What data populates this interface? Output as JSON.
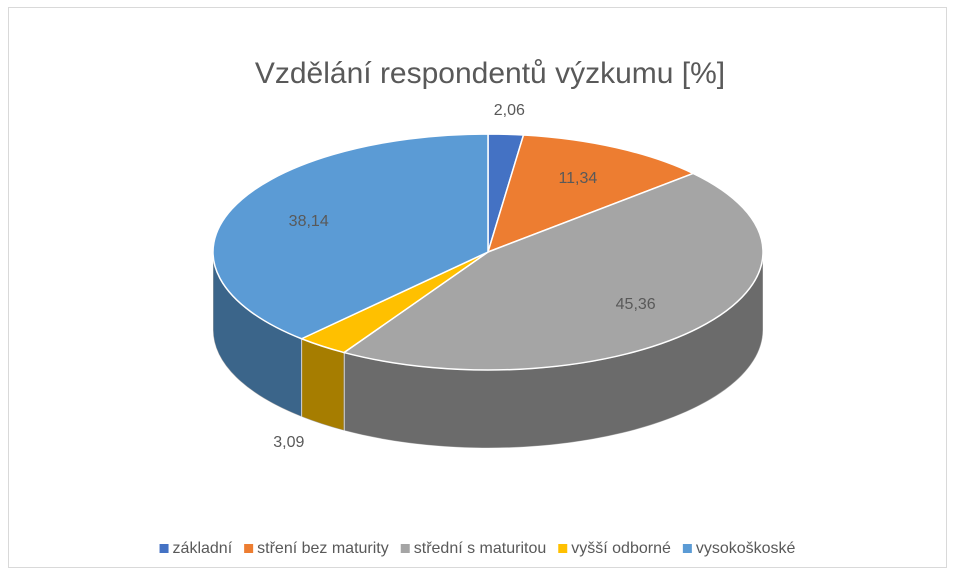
{
  "chart_data": {
    "type": "pie3d",
    "title": "Vzdělání respondentů výzkumu [%]",
    "categories": [
      "základní",
      "stření bez maturity",
      "střední s maturitou",
      "vyšší odborné",
      "vysokoškoské"
    ],
    "values": [
      2.06,
      11.34,
      45.36,
      3.09,
      38.14
    ],
    "value_labels": [
      "2,06",
      "11,34",
      "45,36",
      "3,09",
      "38,14"
    ],
    "colors": [
      "#4472c4",
      "#ed7d31",
      "#a5a5a5",
      "#ffc000",
      "#5b9bd5"
    ],
    "legend": "bottom"
  }
}
